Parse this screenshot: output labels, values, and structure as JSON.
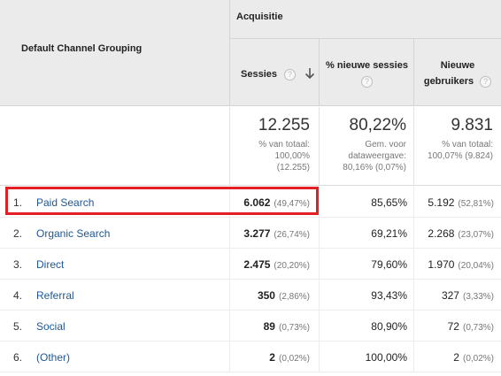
{
  "header": {
    "dimension_label": "Default Channel Grouping",
    "group_label": "Acquisitie",
    "columns": {
      "sessions": "Sessies",
      "new_sessions": "% nieuwe sessies",
      "new_users_line1": "Nieuwe",
      "new_users_line2": "gebruikers",
      "help_glyph": "?"
    }
  },
  "totals": {
    "sessions": {
      "value": "12.255",
      "l1": "% van totaal:",
      "l2": "100,00%",
      "l3": "(12.255)"
    },
    "new_sessions": {
      "value": "80,22%",
      "l1": "Gem. voor",
      "l2": "dataweergave:",
      "l3": "80,16% (0,07%)"
    },
    "new_users": {
      "value": "9.831",
      "l1": "% van totaal:",
      "l2": "100,07% (9.824)"
    }
  },
  "rows": [
    {
      "rank": "1.",
      "channel": "Paid Search",
      "sessions": "6.062",
      "sessions_pct": "(49,47%)",
      "new_sessions": "85,65%",
      "new_users": "5.192",
      "new_users_pct": "(52,81%)"
    },
    {
      "rank": "2.",
      "channel": "Organic Search",
      "sessions": "3.277",
      "sessions_pct": "(26,74%)",
      "new_sessions": "69,21%",
      "new_users": "2.268",
      "new_users_pct": "(23,07%)"
    },
    {
      "rank": "3.",
      "channel": "Direct",
      "sessions": "2.475",
      "sessions_pct": "(20,20%)",
      "new_sessions": "79,60%",
      "new_users": "1.970",
      "new_users_pct": "(20,04%)"
    },
    {
      "rank": "4.",
      "channel": "Referral",
      "sessions": "350",
      "sessions_pct": "(2,86%)",
      "new_sessions": "93,43%",
      "new_users": "327",
      "new_users_pct": "(3,33%)"
    },
    {
      "rank": "5.",
      "channel": "Social",
      "sessions": "89",
      "sessions_pct": "(0,73%)",
      "new_sessions": "80,90%",
      "new_users": "72",
      "new_users_pct": "(0,73%)"
    },
    {
      "rank": "6.",
      "channel": "(Other)",
      "sessions": "2",
      "sessions_pct": "(0,02%)",
      "new_sessions": "100,00%",
      "new_users": "2",
      "new_users_pct": "(0,02%)"
    }
  ],
  "colors": {
    "highlight_border": "#e31e24",
    "link": "#1e5795",
    "header_bg": "#ebebeb"
  }
}
